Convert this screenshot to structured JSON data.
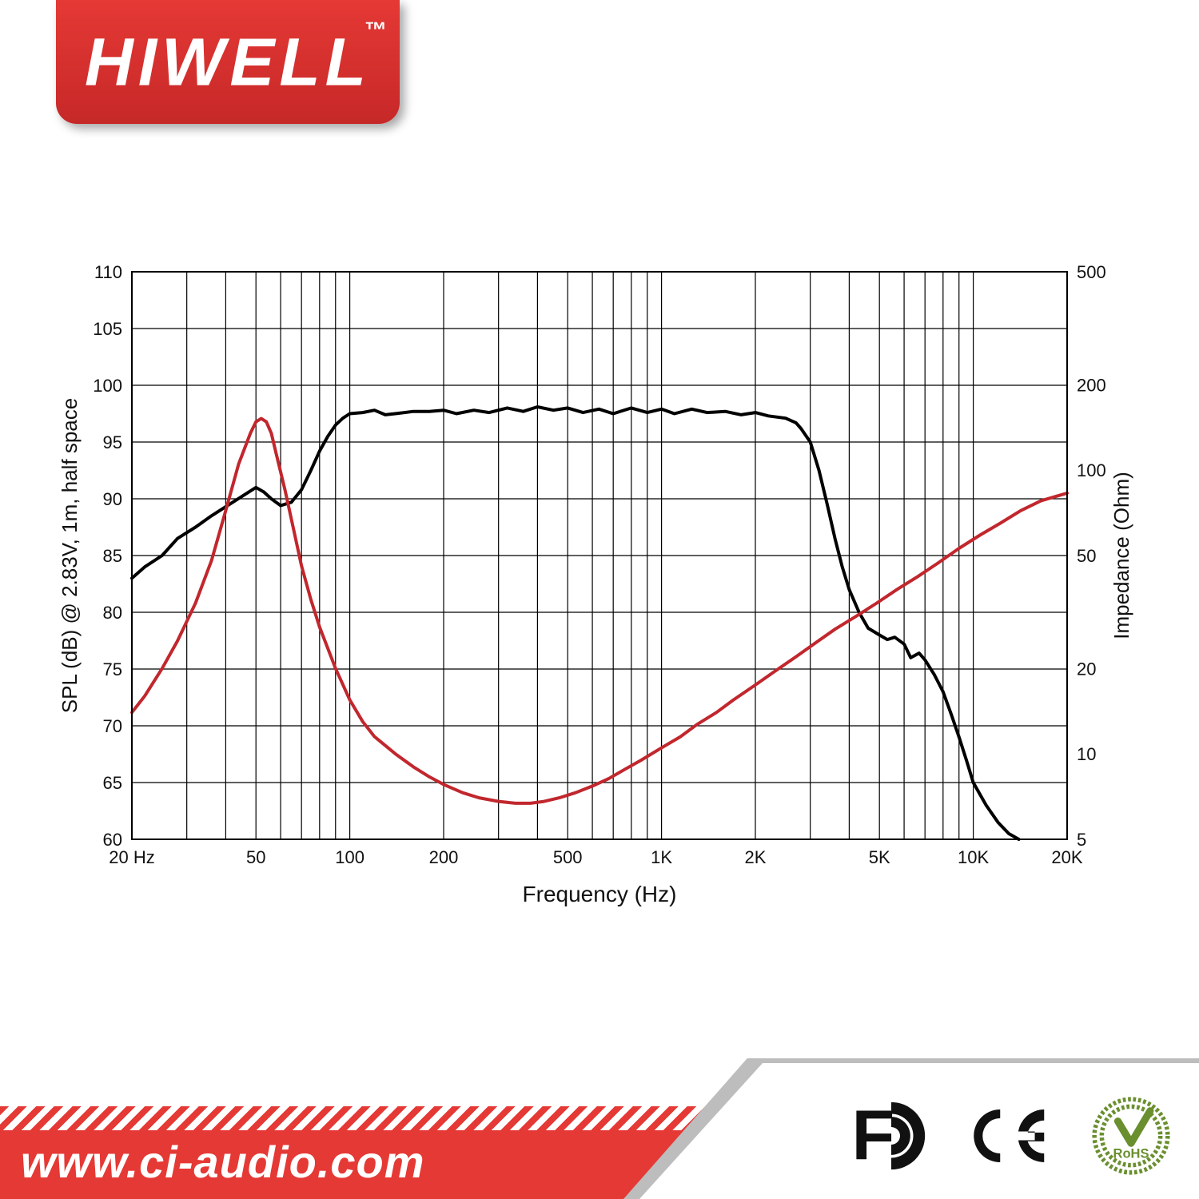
{
  "brand": {
    "name": "HIWELL",
    "tm": "™"
  },
  "footer": {
    "url": "www.ci-audio.com"
  },
  "certifications": [
    "FC",
    "CE",
    "RoHS"
  ],
  "chart": {
    "type": "line-dual-axis",
    "background_color": "#ffffff",
    "grid_color": "#000000",
    "grid_width": 1.2,
    "border_width": 2,
    "x": {
      "title": "Frequency (Hz)",
      "title_fontsize": 28,
      "scale": "log",
      "min": 20,
      "max": 20000,
      "ticks": [
        20,
        50,
        100,
        200,
        500,
        1000,
        2000,
        5000,
        10000,
        20000
      ],
      "tick_labels": [
        "20  Hz",
        "50",
        "100",
        "200",
        "500",
        "1K",
        "2K",
        "5K",
        "10K",
        "20K"
      ],
      "minor_decades": [
        [
          20,
          30,
          40,
          50,
          60,
          70,
          80,
          90
        ],
        [
          100,
          200,
          300,
          400,
          500,
          600,
          700,
          800,
          900
        ],
        [
          1000,
          2000,
          3000,
          4000,
          5000,
          6000,
          7000,
          8000,
          9000
        ],
        [
          10000,
          20000
        ]
      ]
    },
    "y_left": {
      "title": "SPL (dB) @ 2.83V, 1m, half space",
      "title_fontsize": 26,
      "scale": "linear",
      "min": 60,
      "max": 110,
      "ticks": [
        60,
        65,
        70,
        75,
        80,
        85,
        90,
        95,
        100,
        105,
        110
      ]
    },
    "y_right": {
      "title": "Impedance (Ohm)",
      "title_fontsize": 26,
      "scale": "log",
      "min": 5,
      "max": 500,
      "ticks": [
        5,
        10,
        20,
        50,
        100,
        200,
        500
      ]
    },
    "series": [
      {
        "name": "SPL",
        "axis": "left",
        "color": "#000000",
        "line_width": 4,
        "points": [
          [
            20,
            83
          ],
          [
            22,
            84
          ],
          [
            25,
            85
          ],
          [
            28,
            86.5
          ],
          [
            32,
            87.5
          ],
          [
            36,
            88.5
          ],
          [
            40,
            89.3
          ],
          [
            45,
            90.2
          ],
          [
            50,
            91
          ],
          [
            53,
            90.6
          ],
          [
            56,
            90
          ],
          [
            60,
            89.4
          ],
          [
            65,
            89.7
          ],
          [
            70,
            90.8
          ],
          [
            75,
            92.5
          ],
          [
            80,
            94.2
          ],
          [
            85,
            95.5
          ],
          [
            90,
            96.5
          ],
          [
            95,
            97.1
          ],
          [
            100,
            97.5
          ],
          [
            110,
            97.6
          ],
          [
            120,
            97.8
          ],
          [
            130,
            97.4
          ],
          [
            140,
            97.5
          ],
          [
            160,
            97.7
          ],
          [
            180,
            97.7
          ],
          [
            200,
            97.8
          ],
          [
            220,
            97.5
          ],
          [
            250,
            97.8
          ],
          [
            280,
            97.6
          ],
          [
            320,
            98
          ],
          [
            360,
            97.7
          ],
          [
            400,
            98.1
          ],
          [
            450,
            97.8
          ],
          [
            500,
            98
          ],
          [
            560,
            97.6
          ],
          [
            630,
            97.9
          ],
          [
            700,
            97.5
          ],
          [
            800,
            98
          ],
          [
            900,
            97.6
          ],
          [
            1000,
            97.9
          ],
          [
            1100,
            97.5
          ],
          [
            1250,
            97.9
          ],
          [
            1400,
            97.6
          ],
          [
            1600,
            97.7
          ],
          [
            1800,
            97.4
          ],
          [
            2000,
            97.6
          ],
          [
            2200,
            97.3
          ],
          [
            2500,
            97.1
          ],
          [
            2700,
            96.7
          ],
          [
            2800,
            96.2
          ],
          [
            3000,
            95
          ],
          [
            3200,
            92.5
          ],
          [
            3400,
            89.5
          ],
          [
            3600,
            86.5
          ],
          [
            3800,
            84
          ],
          [
            4000,
            82
          ],
          [
            4300,
            80
          ],
          [
            4600,
            78.6
          ],
          [
            5000,
            78
          ],
          [
            5300,
            77.6
          ],
          [
            5600,
            77.8
          ],
          [
            6000,
            77.2
          ],
          [
            6300,
            76
          ],
          [
            6700,
            76.4
          ],
          [
            7000,
            75.8
          ],
          [
            7500,
            74.5
          ],
          [
            8000,
            73
          ],
          [
            8500,
            71
          ],
          [
            9000,
            69
          ],
          [
            9500,
            67
          ],
          [
            10000,
            65
          ],
          [
            11000,
            63
          ],
          [
            12000,
            61.5
          ],
          [
            13000,
            60.5
          ],
          [
            14000,
            60
          ]
        ]
      },
      {
        "name": "Impedance",
        "axis": "right",
        "color": "#c1272d",
        "line_width": 4,
        "points": [
          [
            20,
            14
          ],
          [
            22,
            16
          ],
          [
            25,
            20
          ],
          [
            28,
            25
          ],
          [
            32,
            34
          ],
          [
            36,
            48
          ],
          [
            40,
            72
          ],
          [
            44,
            105
          ],
          [
            48,
            135
          ],
          [
            50,
            148
          ],
          [
            52,
            152
          ],
          [
            54,
            148
          ],
          [
            56,
            135
          ],
          [
            58,
            115
          ],
          [
            62,
            85
          ],
          [
            66,
            62
          ],
          [
            70,
            46
          ],
          [
            75,
            35
          ],
          [
            80,
            28
          ],
          [
            90,
            20
          ],
          [
            100,
            15.5
          ],
          [
            110,
            13
          ],
          [
            120,
            11.5
          ],
          [
            140,
            10
          ],
          [
            160,
            9
          ],
          [
            180,
            8.3
          ],
          [
            200,
            7.8
          ],
          [
            230,
            7.3
          ],
          [
            260,
            7
          ],
          [
            300,
            6.8
          ],
          [
            340,
            6.7
          ],
          [
            380,
            6.7
          ],
          [
            420,
            6.8
          ],
          [
            470,
            7
          ],
          [
            530,
            7.3
          ],
          [
            600,
            7.7
          ],
          [
            680,
            8.2
          ],
          [
            760,
            8.8
          ],
          [
            860,
            9.5
          ],
          [
            1000,
            10.5
          ],
          [
            1150,
            11.5
          ],
          [
            1300,
            12.7
          ],
          [
            1500,
            14
          ],
          [
            1700,
            15.5
          ],
          [
            2000,
            17.5
          ],
          [
            2300,
            19.5
          ],
          [
            2700,
            22
          ],
          [
            3100,
            24.5
          ],
          [
            3600,
            27.5
          ],
          [
            4200,
            30.5
          ],
          [
            4900,
            34
          ],
          [
            5700,
            38
          ],
          [
            6600,
            42
          ],
          [
            7700,
            47
          ],
          [
            9000,
            53
          ],
          [
            10500,
            59
          ],
          [
            12200,
            65
          ],
          [
            14200,
            72
          ],
          [
            16500,
            78
          ],
          [
            20000,
            83
          ]
        ]
      }
    ]
  }
}
